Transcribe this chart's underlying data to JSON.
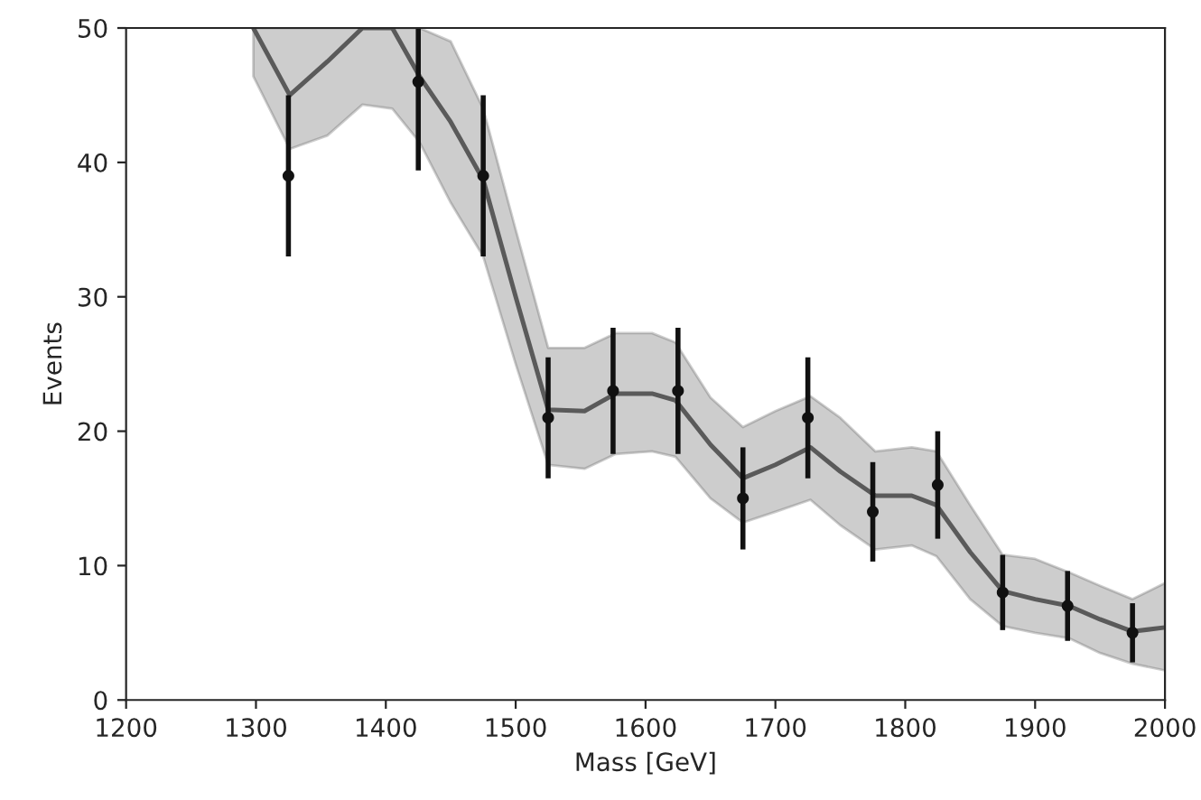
{
  "chart_data": {
    "type": "line",
    "xlabel": "Mass [GeV]",
    "ylabel": "Events",
    "xlim": [
      1200,
      2000
    ],
    "ylim": [
      0,
      50
    ],
    "xticks": [
      1200,
      1300,
      1400,
      1500,
      1600,
      1700,
      1800,
      1900,
      2000
    ],
    "yticks": [
      0,
      10,
      20,
      30,
      40,
      50
    ],
    "grid": false,
    "series": [
      {
        "color": "#5a5a5a",
        "x": [
          1298,
          1326,
          1355,
          1382,
          1405,
          1426,
          1450,
          1475,
          1500,
          1525,
          1553,
          1577,
          1605,
          1623,
          1650,
          1675,
          1700,
          1727,
          1750,
          1777,
          1805,
          1824,
          1850,
          1875,
          1900,
          1926,
          1950,
          1975,
          2000
        ],
        "values": [
          50,
          45,
          47.5,
          50,
          50,
          46.4,
          43,
          38.7,
          30,
          21.6,
          21.5,
          22.8,
          22.8,
          22.3,
          19,
          16.5,
          17.5,
          18.8,
          17,
          15.2,
          15.2,
          14.5,
          11,
          8.1,
          7.5,
          7.0,
          6,
          5.1,
          5.4
        ],
        "lower": [
          46.4,
          41,
          42,
          44.3,
          44,
          41.5,
          37,
          33,
          25,
          17.5,
          17.2,
          18.3,
          18.5,
          18.1,
          15,
          13.2,
          14,
          14.9,
          13,
          11.2,
          11.5,
          10.7,
          7.5,
          5.5,
          5,
          4.6,
          3.5,
          2.7,
          2.2
        ],
        "upper": [
          50,
          50,
          50,
          50,
          50,
          50,
          49,
          44,
          35,
          26.2,
          26.2,
          27.3,
          27.3,
          26.6,
          22.5,
          20.3,
          21.5,
          22.6,
          21,
          18.5,
          18.8,
          18.5,
          14.5,
          10.8,
          10.5,
          9.5,
          8.5,
          7.5,
          8.7
        ]
      },
      {
        "type": "scatter",
        "color": "#111111",
        "marker": "circle",
        "x": [
          1325,
          1375,
          1425,
          1475,
          1525,
          1575,
          1625,
          1675,
          1725,
          1775,
          1825,
          1875,
          1925,
          1975
        ],
        "values": [
          39,
          null,
          46,
          39,
          21,
          23,
          23,
          15,
          21,
          14,
          16,
          8,
          7,
          5
        ],
        "errors": [
          6,
          null,
          [
            39.4,
            50
          ],
          6,
          4.5,
          4.7,
          4.7,
          3.8,
          4.5,
          3.7,
          4,
          2.8,
          2.6,
          2.2
        ]
      }
    ]
  }
}
